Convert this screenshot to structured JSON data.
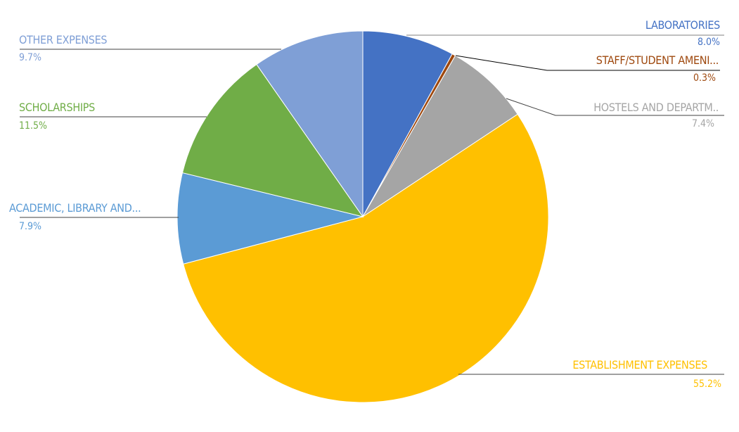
{
  "chart_data": {
    "type": "pie",
    "start_angle": "12 o'clock",
    "direction": "clockwise",
    "slices": [
      {
        "label": "LABORATORIES",
        "value": 8.0,
        "display": "8.0%",
        "color": "#4472C4"
      },
      {
        "label": "STAFF/STUDENT AMENI...",
        "value": 0.3,
        "display": "0.3%",
        "color": "#9E480E"
      },
      {
        "label": "HOSTELS AND DEPARTM..",
        "value": 7.4,
        "display": "7.4%",
        "color": "#A5A5A5"
      },
      {
        "label": "ESTABLISHMENT EXPENSES",
        "value": 55.2,
        "display": "55.2%",
        "color": "#FFC000"
      },
      {
        "label": "ACADEMIC, LIBRARY AND...",
        "value": 7.9,
        "display": "7.9%",
        "color": "#5B9BD5"
      },
      {
        "label": "SCHOLARSHIPS",
        "value": 11.5,
        "display": "11.5%",
        "color": "#70AD47"
      },
      {
        "label": "OTHER EXPENSES",
        "value": 9.7,
        "display": "9.7%",
        "color": "#7F9FD6"
      }
    ]
  }
}
